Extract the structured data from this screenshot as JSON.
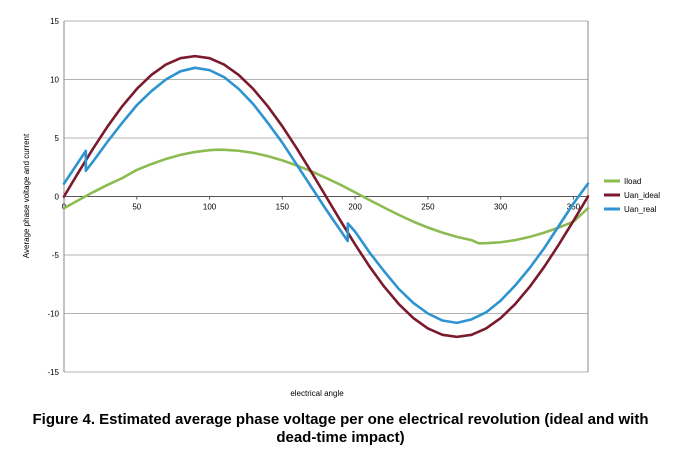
{
  "chart_data": {
    "type": "line",
    "xlabel": "electrical angle",
    "ylabel": "Average phase voltage and current",
    "xlim": [
      0,
      360
    ],
    "ylim": [
      -15,
      15
    ],
    "x_ticks": [
      0,
      50,
      100,
      150,
      200,
      250,
      300,
      350
    ],
    "y_ticks": [
      15,
      10,
      5,
      0,
      -5,
      -10,
      -15
    ],
    "grid": "horizontal",
    "legend_position": "right",
    "series": [
      {
        "name": "Iload",
        "color": "#8cbb52",
        "x": [
          0,
          10,
          20,
          30,
          40,
          50,
          60,
          70,
          80,
          90,
          100,
          105,
          110,
          120,
          130,
          140,
          150,
          160,
          170,
          180,
          190,
          200,
          210,
          220,
          230,
          240,
          250,
          260,
          270,
          280,
          285,
          290,
          300,
          310,
          320,
          330,
          340,
          350,
          360
        ],
        "values": [
          -1.0,
          -0.31,
          0.37,
          1.0,
          1.57,
          2.27,
          2.77,
          3.21,
          3.56,
          3.81,
          3.96,
          4.0,
          3.99,
          3.91,
          3.73,
          3.45,
          3.09,
          2.65,
          2.15,
          1.59,
          1.0,
          0.35,
          -0.31,
          -0.95,
          -1.57,
          -2.15,
          -2.65,
          -3.09,
          -3.45,
          -3.73,
          -4.0,
          -3.99,
          -3.91,
          -3.73,
          -3.45,
          -3.09,
          -2.65,
          -2.15,
          -1.0
        ]
      },
      {
        "name": "Uan_ideal",
        "color": "#7b1a2d",
        "x": [
          0,
          10,
          20,
          30,
          40,
          50,
          60,
          70,
          80,
          90,
          100,
          110,
          120,
          130,
          140,
          150,
          160,
          170,
          180,
          190,
          200,
          210,
          220,
          230,
          240,
          250,
          260,
          270,
          280,
          290,
          300,
          310,
          320,
          330,
          340,
          350,
          360
        ],
        "values": [
          0,
          2.08,
          4.1,
          6.0,
          7.71,
          9.19,
          10.39,
          11.28,
          11.82,
          12.0,
          11.82,
          11.28,
          10.39,
          9.19,
          7.71,
          6.0,
          4.1,
          2.08,
          0,
          -2.08,
          -4.1,
          -6.0,
          -7.71,
          -9.19,
          -10.39,
          -11.28,
          -11.82,
          -12.0,
          -11.82,
          -11.28,
          -10.39,
          -9.19,
          -7.71,
          -6.0,
          -4.1,
          -2.08,
          0
        ]
      },
      {
        "name": "Uan_real",
        "color": "#2e94d1",
        "x": [
          0,
          15,
          15.01,
          20,
          30,
          40,
          50,
          60,
          70,
          80,
          90,
          100,
          110,
          120,
          130,
          140,
          150,
          160,
          170,
          180,
          194.9,
          195,
          200,
          210,
          220,
          230,
          240,
          250,
          260,
          270,
          280,
          290,
          300,
          310,
          320,
          330,
          340,
          350,
          360
        ],
        "values": [
          1.1,
          3.9,
          2.2,
          3.0,
          4.7,
          6.3,
          7.8,
          9.0,
          10.0,
          10.7,
          11.0,
          10.8,
          10.2,
          9.2,
          7.9,
          6.3,
          4.6,
          2.7,
          0.8,
          -1.1,
          -3.8,
          -2.3,
          -3.0,
          -4.8,
          -6.4,
          -7.9,
          -9.1,
          -10.0,
          -10.6,
          -10.8,
          -10.5,
          -9.9,
          -8.9,
          -7.6,
          -6.1,
          -4.4,
          -2.5,
          -0.6,
          1.1
        ]
      }
    ]
  },
  "caption": {
    "line1": "Figure 4. Estimated average phase voltage per one electrical revolution (ideal and with",
    "line2": "dead-time impact)"
  }
}
